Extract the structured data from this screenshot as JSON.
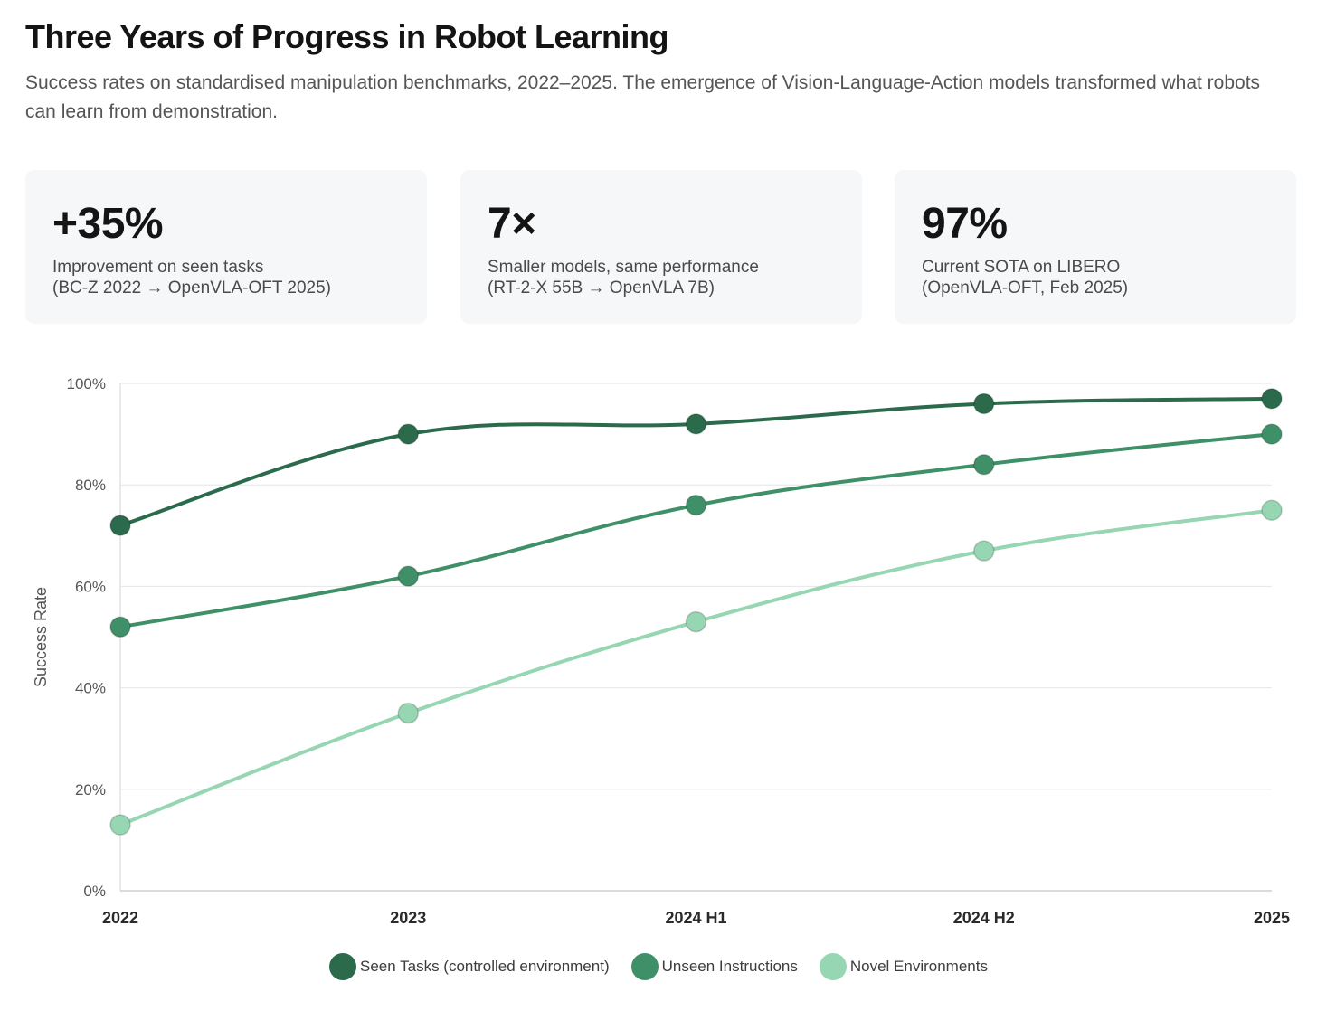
{
  "header": {
    "title": "Three Years of Progress in Robot Learning",
    "subtitle": "Success rates on standardised manipulation benchmarks, 2022–2025. The emergence of Vision-Language-Action models transformed what robots can learn from demonstration."
  },
  "stats": [
    {
      "value": "+35%",
      "label": "Improvement on seen tasks",
      "note": "(BC-Z 2022 → OpenVLA-OFT 2025)"
    },
    {
      "value": "7×",
      "label": "Smaller models, same performance",
      "note": "(RT-2-X 55B → OpenVLA 7B)"
    },
    {
      "value": "97%",
      "label": "Current SOTA on LIBERO",
      "note": "(OpenVLA-OFT, Feb 2025)"
    }
  ],
  "chart_data": {
    "type": "line",
    "categories": [
      "2022",
      "2023",
      "2024 H1",
      "2024 H2",
      "2025"
    ],
    "ylabel": "Success Rate",
    "xlabel": "",
    "ylim": [
      0,
      100
    ],
    "yticks": [
      "0%",
      "20%",
      "40%",
      "60%",
      "80%",
      "100%"
    ],
    "grid": true,
    "legend_position": "bottom-center",
    "series": [
      {
        "name": "Seen Tasks (controlled environment)",
        "color": "#2b6b4c",
        "values": [
          72,
          90,
          92,
          96,
          97
        ]
      },
      {
        "name": "Unseen Instructions",
        "color": "#3f9068",
        "values": [
          52,
          62,
          76,
          84,
          90
        ]
      },
      {
        "name": "Novel Environments",
        "color": "#96d6b2",
        "values": [
          13,
          35,
          53,
          67,
          75
        ]
      }
    ]
  }
}
